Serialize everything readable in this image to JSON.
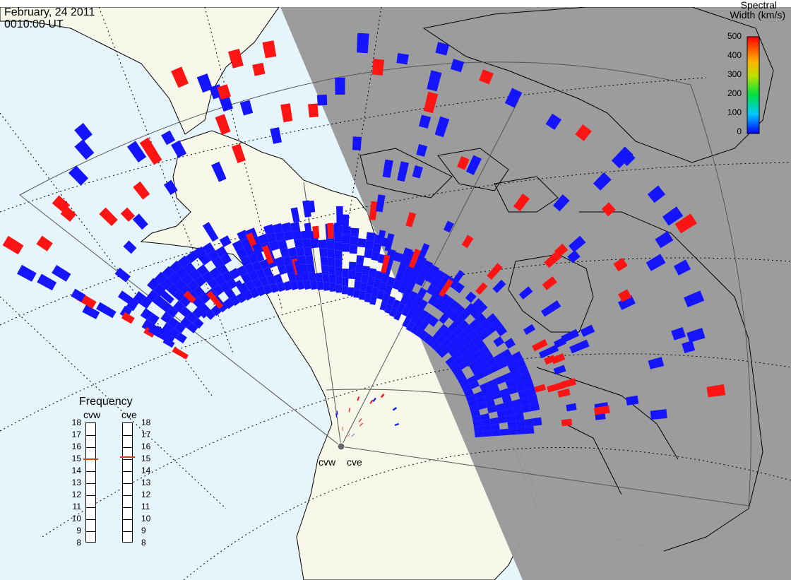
{
  "header": {
    "date": "February, 24 2011",
    "time": "0010:00 UT"
  },
  "colorbar": {
    "title_line1": "Spectral",
    "title_line2": "Width (km/s)",
    "ticks": [
      "500",
      "400",
      "300",
      "200",
      "100",
      "0"
    ],
    "min": 0,
    "max": 500
  },
  "frequency_panel": {
    "title": "Frequency",
    "radars": [
      {
        "name": "cvw",
        "value": 15
      },
      {
        "name": "cve",
        "value": 15.2
      }
    ],
    "ticks": [
      "18",
      "17",
      "16",
      "15",
      "14",
      "13",
      "12",
      "11",
      "10",
      "9",
      "8"
    ],
    "min": 8,
    "max": 18
  },
  "site_labels": {
    "west": "cvw",
    "east": "cve"
  },
  "colors": {
    "ocean": "#e6f4fb",
    "land": "#f7f7ea",
    "night": "#999999",
    "low": "#1414ff",
    "high": "#ff1414",
    "marker": "#d94010"
  },
  "chart_data": {
    "type": "scatter",
    "title": "",
    "variable": "Spectral Width (km/s)",
    "range": [
      0,
      500
    ],
    "note": "SuperDARN Christmas Valley West/East fan plot of backscatter cells colored by spectral width",
    "radars": [
      "cvw",
      "cve"
    ]
  }
}
